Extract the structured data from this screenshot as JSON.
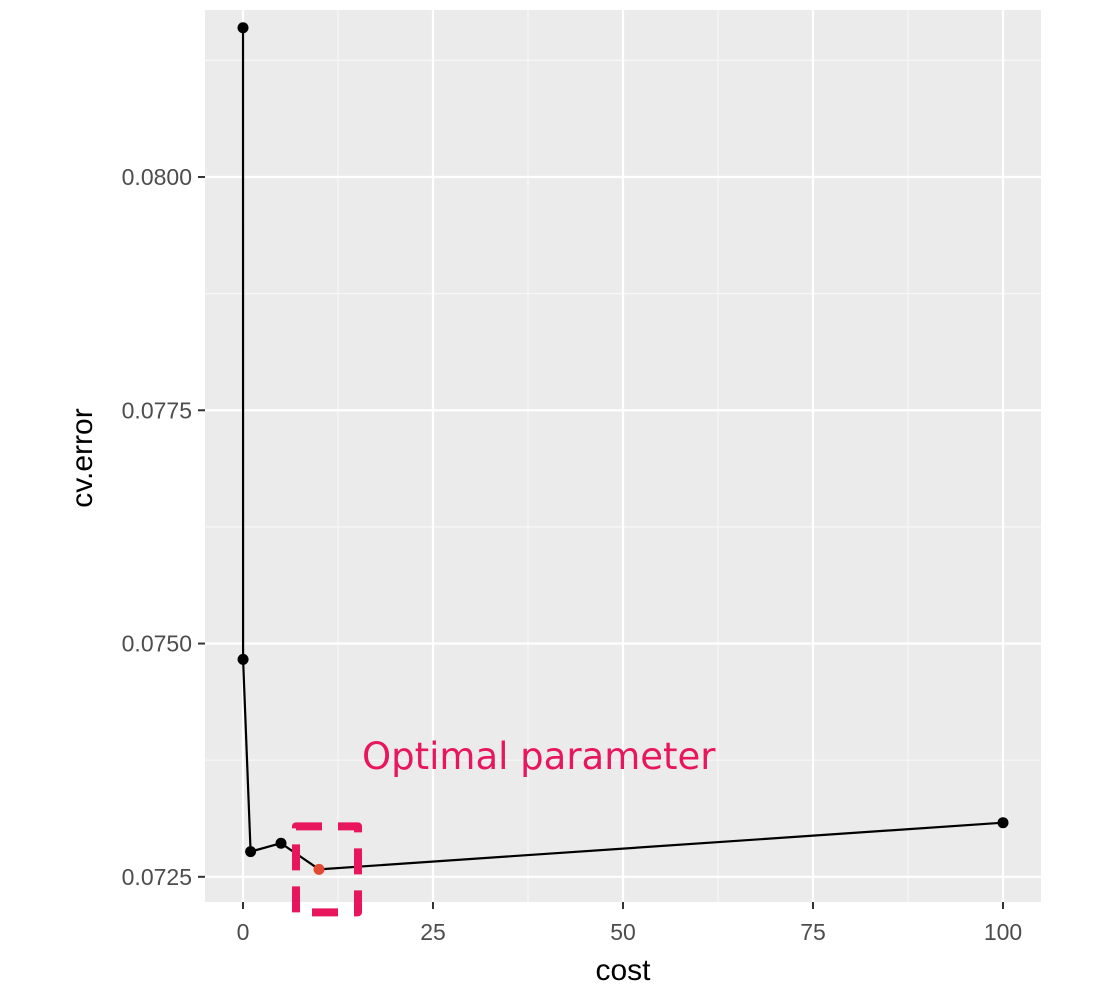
{
  "chart_data": {
    "type": "line",
    "title": "",
    "xlabel": "cost",
    "ylabel": "cv.error",
    "xlim": [
      -5,
      105
    ],
    "ylim": [
      0.07223,
      0.08179
    ],
    "x_ticks": [
      0,
      25,
      50,
      75,
      100
    ],
    "x_tick_labels": [
      "0",
      "25",
      "50",
      "75",
      "100"
    ],
    "y_ticks": [
      0.0725,
      0.075,
      0.0775,
      0.08
    ],
    "y_tick_labels": [
      "0.0725",
      "0.0750",
      "0.0775",
      "0.0800"
    ],
    "grid": true,
    "series": [
      {
        "points": [
          {
            "x": 0.001,
            "y": 0.0816
          },
          {
            "x": 0.01,
            "y": 0.07483
          },
          {
            "x": 1,
            "y": 0.07277
          },
          {
            "x": 5,
            "y": 0.07286
          },
          {
            "x": 10,
            "y": 0.07258
          },
          {
            "x": 100,
            "y": 0.07308
          }
        ]
      }
    ],
    "highlight": {
      "x": 10,
      "y": 0.07258,
      "color": "#e34a33"
    },
    "annotation": {
      "text": "Optimal parameter",
      "color": "#e8175d"
    }
  }
}
